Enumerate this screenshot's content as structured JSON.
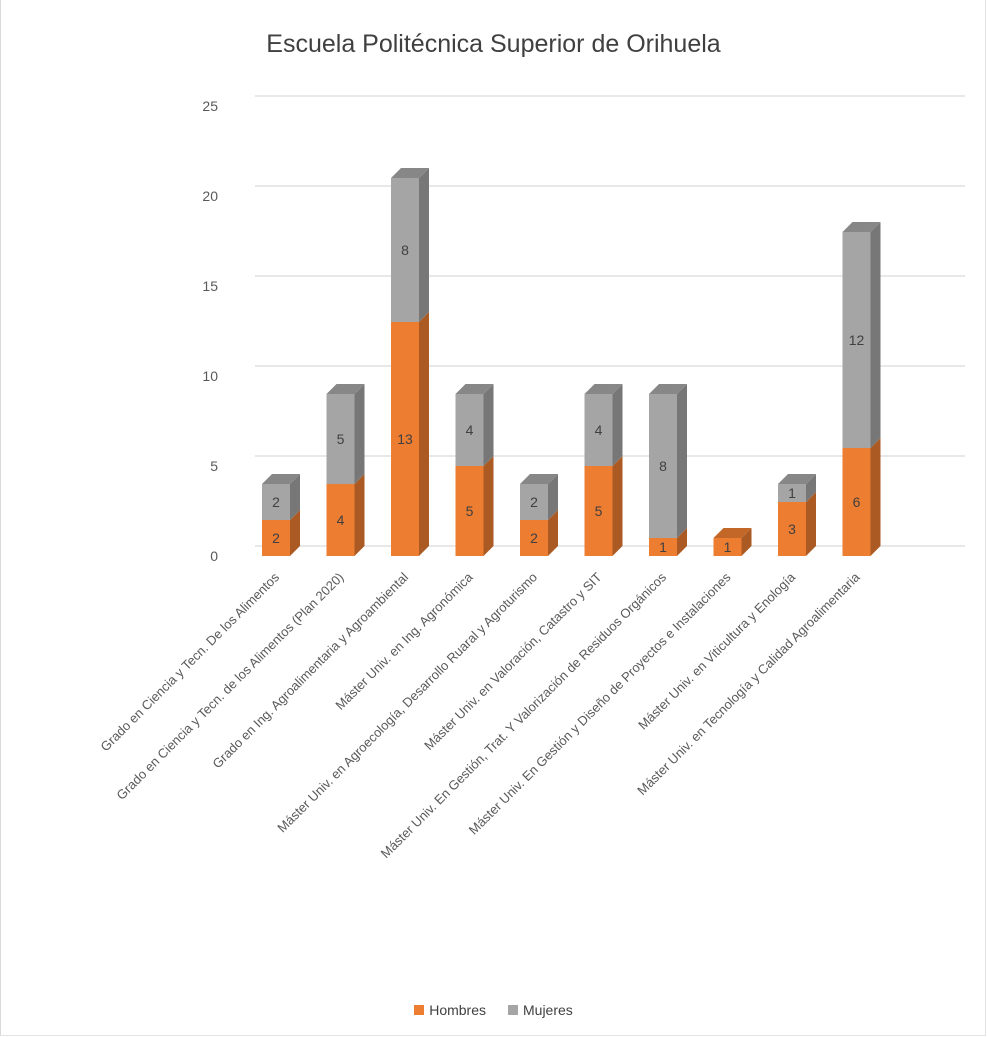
{
  "chart_data": {
    "type": "bar",
    "stacked": true,
    "three_d": true,
    "title": "Escuela Politécnica Superior de Orihuela",
    "categories": [
      "Grado en Ciencia y Tecn. De los Alimentos",
      "Grado en Ciencia y Tecn. de los Alimentos (Plan 2020)",
      "Grado en Ing. Agroalimentaria y Agroambiental",
      "Máster Univ. en Ing. Agronómica",
      "Máster Univ. en Agroecología, Desarrollo Ruaral y Agroturismo",
      "Máster Univ. en Valoración, Catastro y SIT",
      "Máster Univ. En Gestión, Trat. Y Valorización de Residuos Orgánicos",
      "Máster Univ. En Gestión y Diseño de Proyectos e Instalaciones",
      "Máster Univ. en Viticultura y Enología",
      "Máster Univ. en Tecnología y Calidad Agroalimentaria"
    ],
    "series": [
      {
        "name": "Hombres",
        "values": [
          2,
          4,
          13,
          5,
          2,
          5,
          1,
          1,
          3,
          6
        ],
        "color": "#ed7d31"
      },
      {
        "name": "Mujeres",
        "values": [
          2,
          5,
          8,
          4,
          2,
          4,
          8,
          0,
          1,
          12
        ],
        "color": "#a5a5a5"
      }
    ],
    "ylim": [
      0,
      25
    ],
    "yticks": [
      "0",
      "5",
      "10",
      "15",
      "20",
      "25"
    ],
    "grid": true,
    "legend_position": "bottom",
    "data_labels": true
  }
}
